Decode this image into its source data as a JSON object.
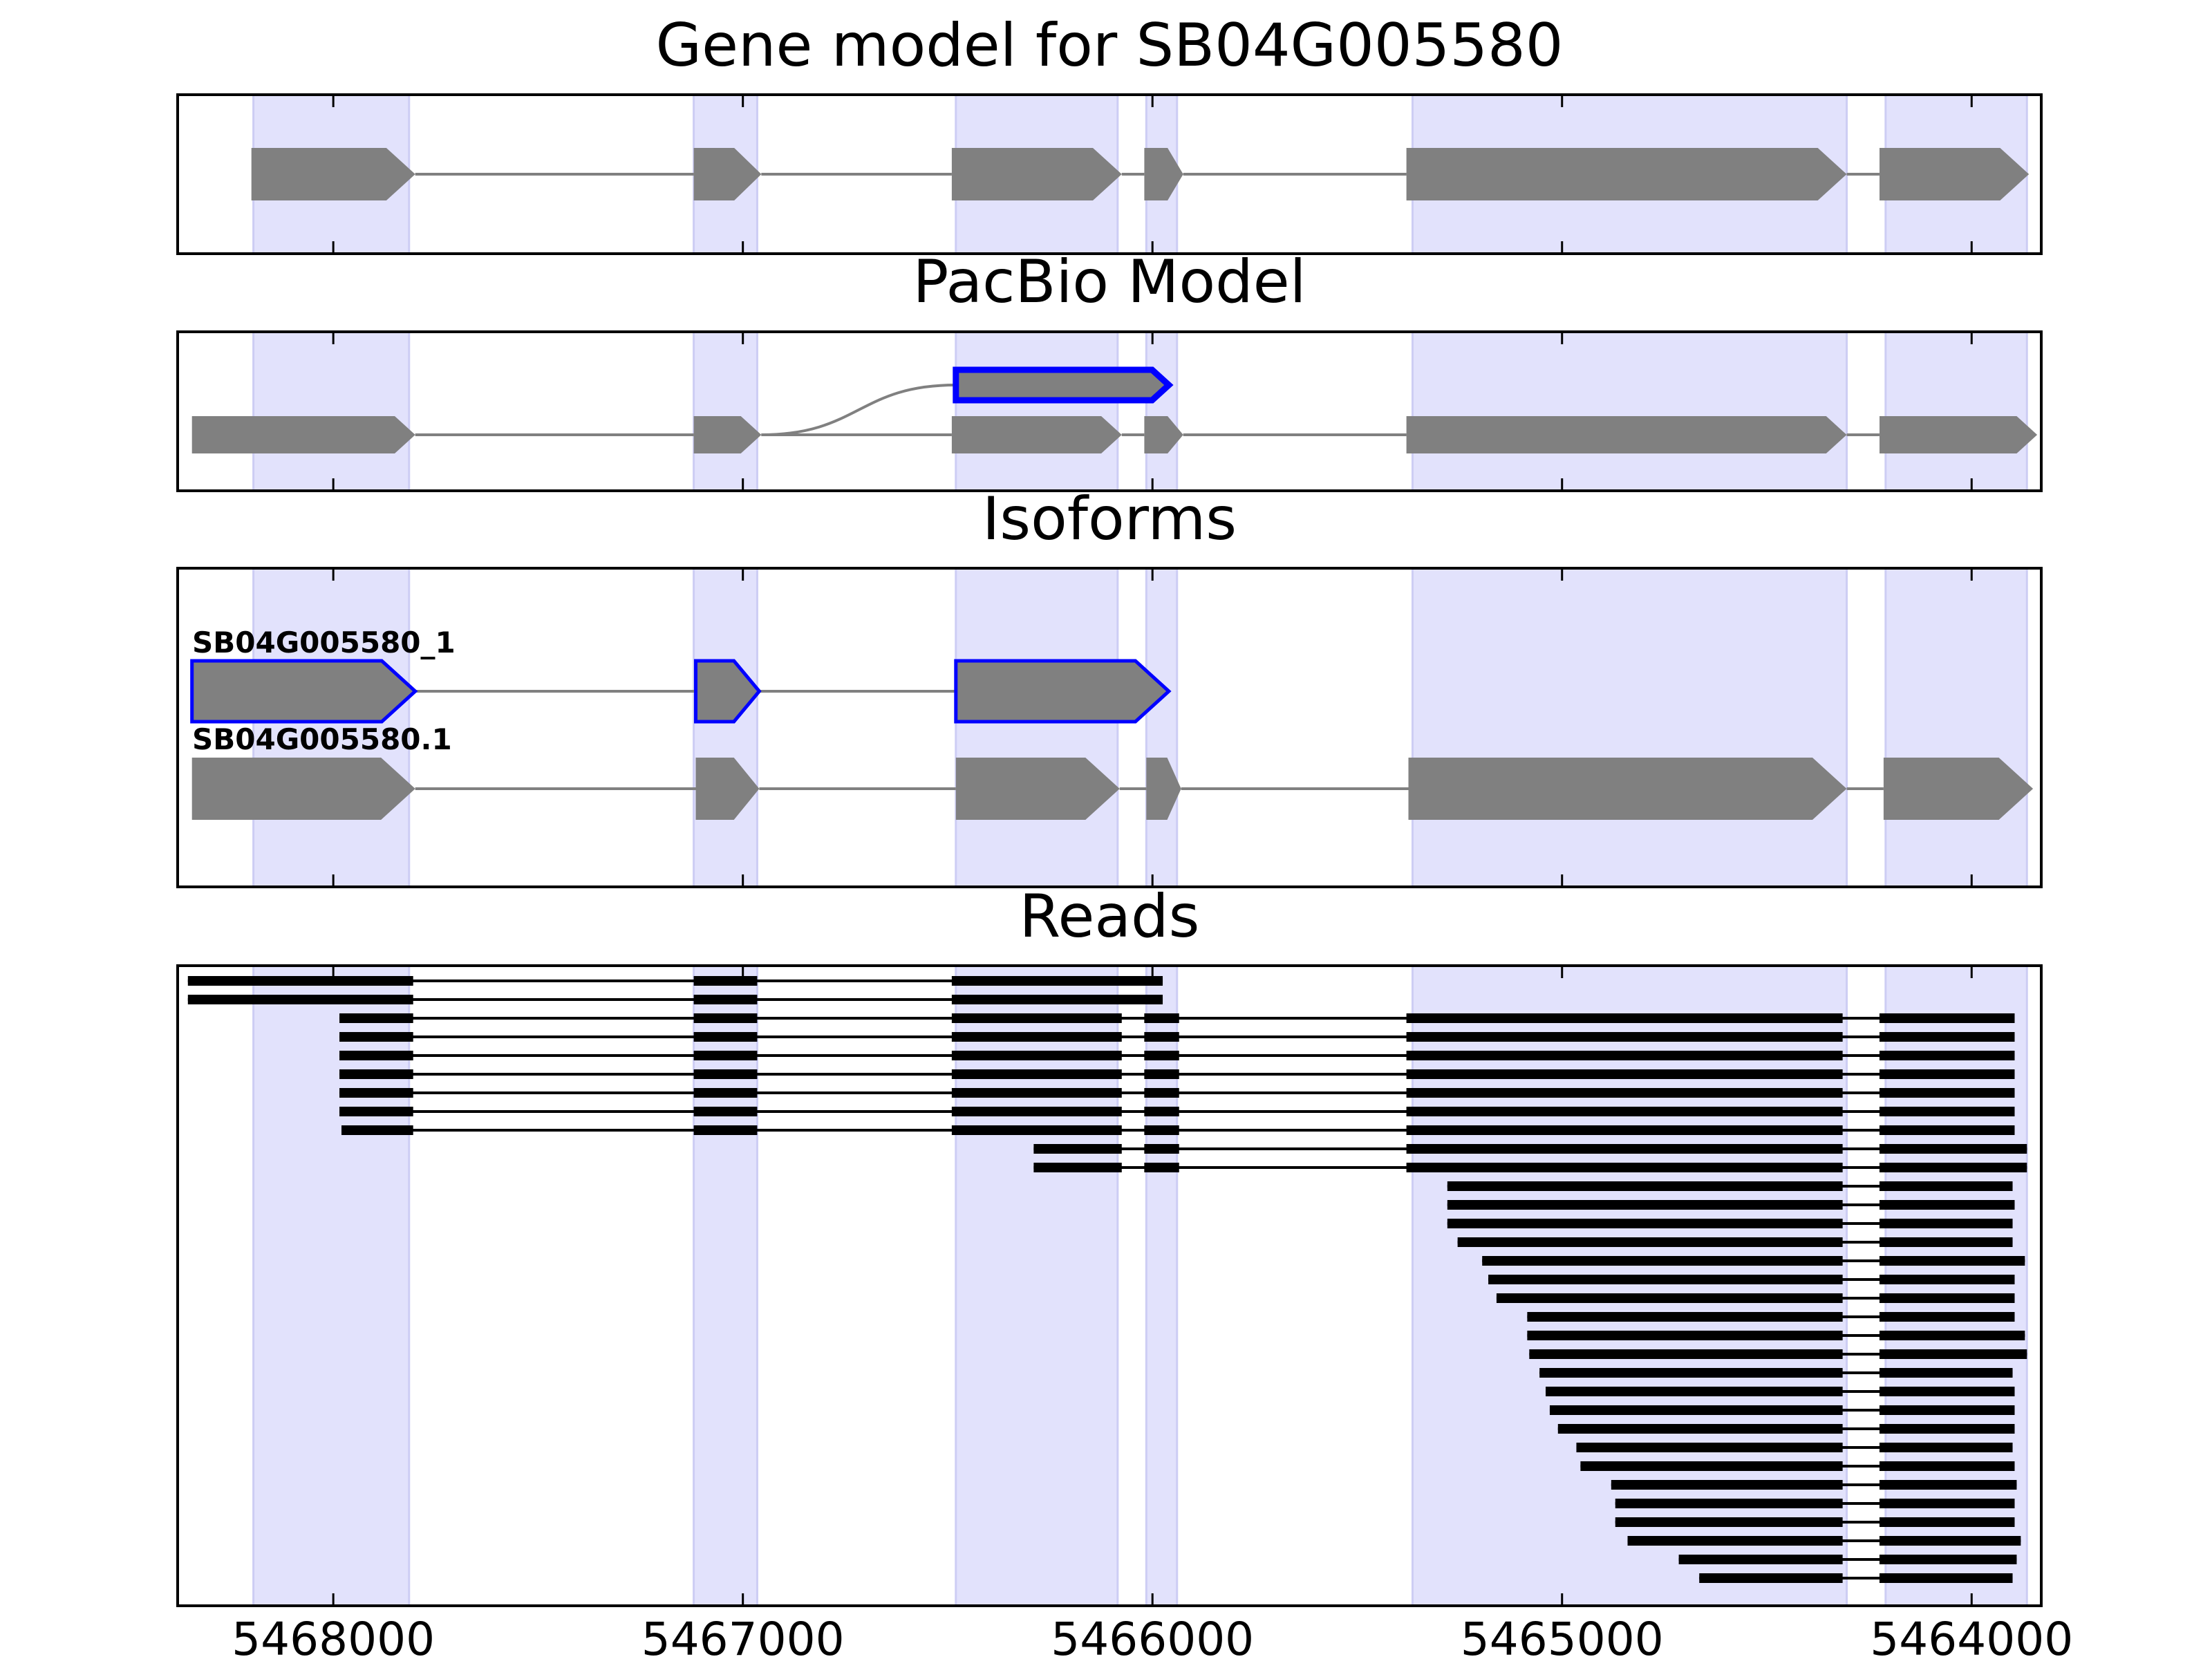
{
  "chart_data": {
    "type": "gene-track",
    "x_ticks": [
      5468000,
      5467000,
      5466000,
      5465000,
      5464000
    ],
    "xlim": [
      5468380,
      5463830
    ],
    "exon_shading": [
      [
        5468195,
        5467815
      ],
      [
        5467120,
        5466965
      ],
      [
        5466480,
        5466085
      ],
      [
        5466015,
        5465940
      ],
      [
        5465365,
        5464305
      ],
      [
        5464210,
        5463865
      ]
    ],
    "panels": [
      {
        "title": "Gene model for SB04G005580",
        "tracks": [
          {
            "label": "",
            "color": "#808080",
            "outline": "",
            "exons": [
              [
                5468200,
                5467800
              ],
              [
                5467120,
                5466955
              ],
              [
                5466490,
                5466075
              ],
              [
                5466020,
                5465925
              ],
              [
                5465380,
                5464305
              ],
              [
                5464225,
                5463860
              ]
            ]
          }
        ]
      },
      {
        "title": "PacBio Model",
        "tracks": [
          {
            "label": "",
            "color": "#808080",
            "outline": "#0000ff",
            "curve_from": 5466955,
            "exons": [
              [
                5466480,
                5465960
              ]
            ]
          },
          {
            "label": "",
            "color": "#808080",
            "outline": "",
            "exons": [
              [
                5468345,
                5467800
              ],
              [
                5467120,
                5466955
              ],
              [
                5466490,
                5466075
              ],
              [
                5466020,
                5465925
              ],
              [
                5465380,
                5464305
              ],
              [
                5464225,
                5463840
              ]
            ]
          }
        ]
      },
      {
        "title": "Isoforms",
        "tracks": [
          {
            "label": "SB04G005580_1",
            "color": "#808080",
            "outline": "#0000ff",
            "exons": [
              [
                5468345,
                5467800
              ],
              [
                5467115,
                5466960
              ],
              [
                5466480,
                5465960
              ]
            ]
          },
          {
            "label": "SB04G005580.1",
            "color": "#808080",
            "outline": "",
            "exons": [
              [
                5468345,
                5467800
              ],
              [
                5467115,
                5466960
              ],
              [
                5466480,
                5466080
              ],
              [
                5466015,
                5465930
              ],
              [
                5465375,
                5464305
              ],
              [
                5464215,
                5463850
              ]
            ]
          }
        ]
      },
      {
        "title": "Reads",
        "reads": [
          [
            [
              5468355,
              5467805
            ],
            [
              5467120,
              5466965
            ],
            [
              5466490,
              5465975
            ]
          ],
          [
            [
              5468355,
              5467805
            ],
            [
              5467120,
              5466965
            ],
            [
              5466490,
              5465975
            ]
          ],
          [
            [
              5467985,
              5467805
            ],
            [
              5467120,
              5466965
            ],
            [
              5466490,
              5466075
            ],
            [
              5466020,
              5465935
            ],
            [
              5465380,
              5464315
            ],
            [
              5464225,
              5463895
            ]
          ],
          [
            [
              5467985,
              5467805
            ],
            [
              5467120,
              5466965
            ],
            [
              5466490,
              5466075
            ],
            [
              5466020,
              5465935
            ],
            [
              5465380,
              5464315
            ],
            [
              5464225,
              5463895
            ]
          ],
          [
            [
              5467985,
              5467805
            ],
            [
              5467120,
              5466965
            ],
            [
              5466490,
              5466075
            ],
            [
              5466020,
              5465935
            ],
            [
              5465380,
              5464315
            ],
            [
              5464225,
              5463895
            ]
          ],
          [
            [
              5467985,
              5467805
            ],
            [
              5467120,
              5466965
            ],
            [
              5466490,
              5466075
            ],
            [
              5466020,
              5465935
            ],
            [
              5465380,
              5464315
            ],
            [
              5464225,
              5463895
            ]
          ],
          [
            [
              5467985,
              5467805
            ],
            [
              5467120,
              5466965
            ],
            [
              5466490,
              5466075
            ],
            [
              5466020,
              5465935
            ],
            [
              5465380,
              5464315
            ],
            [
              5464225,
              5463895
            ]
          ],
          [
            [
              5467985,
              5467805
            ],
            [
              5467120,
              5466965
            ],
            [
              5466490,
              5466075
            ],
            [
              5466020,
              5465935
            ],
            [
              5465380,
              5464315
            ],
            [
              5464225,
              5463895
            ]
          ],
          [
            [
              5467980,
              5467805
            ],
            [
              5467120,
              5466965
            ],
            [
              5466490,
              5466075
            ],
            [
              5466020,
              5465935
            ],
            [
              5465380,
              5464315
            ],
            [
              5464225,
              5463895
            ]
          ],
          [
            [
              5466290,
              5466075
            ],
            [
              5466020,
              5465935
            ],
            [
              5465380,
              5464315
            ],
            [
              5464225,
              5463865
            ]
          ],
          [
            [
              5466290,
              5466075
            ],
            [
              5466020,
              5465935
            ],
            [
              5465380,
              5464315
            ],
            [
              5464225,
              5463865
            ]
          ],
          [
            [
              5465280,
              5464315
            ],
            [
              5464225,
              5463900
            ]
          ],
          [
            [
              5465280,
              5464315
            ],
            [
              5464225,
              5463895
            ]
          ],
          [
            [
              5465280,
              5464315
            ],
            [
              5464225,
              5463900
            ]
          ],
          [
            [
              5465255,
              5464315
            ],
            [
              5464225,
              5463900
            ]
          ],
          [
            [
              5465195,
              5464315
            ],
            [
              5464225,
              5463870
            ]
          ],
          [
            [
              5465180,
              5464315
            ],
            [
              5464225,
              5463895
            ]
          ],
          [
            [
              5465160,
              5464315
            ],
            [
              5464225,
              5463895
            ]
          ],
          [
            [
              5465085,
              5464315
            ],
            [
              5464225,
              5463895
            ]
          ],
          [
            [
              5465085,
              5464315
            ],
            [
              5464225,
              5463870
            ]
          ],
          [
            [
              5465080,
              5464315
            ],
            [
              5464225,
              5463865
            ]
          ],
          [
            [
              5465055,
              5464315
            ],
            [
              5464225,
              5463900
            ]
          ],
          [
            [
              5465040,
              5464315
            ],
            [
              5464225,
              5463895
            ]
          ],
          [
            [
              5465030,
              5464315
            ],
            [
              5464225,
              5463895
            ]
          ],
          [
            [
              5465010,
              5464315
            ],
            [
              5464225,
              5463895
            ]
          ],
          [
            [
              5464965,
              5464315
            ],
            [
              5464225,
              5463900
            ]
          ],
          [
            [
              5464955,
              5464315
            ],
            [
              5464225,
              5463895
            ]
          ],
          [
            [
              5464880,
              5464315
            ],
            [
              5464225,
              5463890
            ]
          ],
          [
            [
              5464870,
              5464315
            ],
            [
              5464225,
              5463895
            ]
          ],
          [
            [
              5464870,
              5464315
            ],
            [
              5464225,
              5463895
            ]
          ],
          [
            [
              5464840,
              5464315
            ],
            [
              5464225,
              5463880
            ]
          ],
          [
            [
              5464715,
              5464315
            ],
            [
              5464225,
              5463890
            ]
          ],
          [
            [
              5464665,
              5464315
            ],
            [
              5464225,
              5463900
            ]
          ]
        ]
      }
    ]
  },
  "colors": {
    "exon": "#808080",
    "intron": "#808080",
    "highlight": "#0000ff",
    "shade": "#e2e2fc",
    "shade_edge": "#cdcdf4",
    "read": "#000000"
  }
}
